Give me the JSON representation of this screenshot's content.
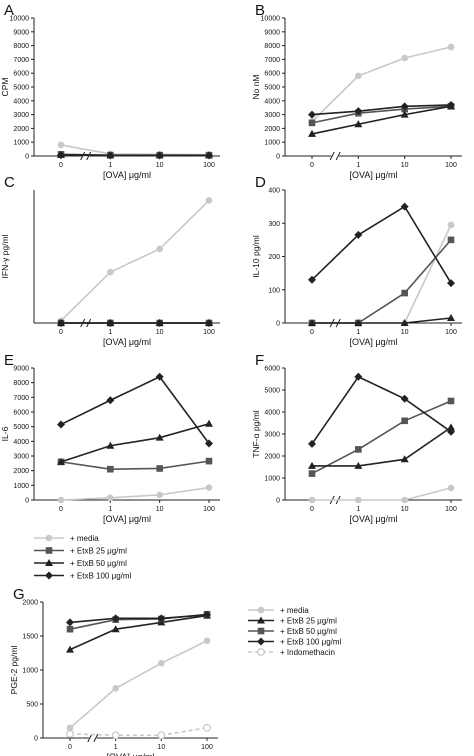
{
  "legend_main": [
    {
      "label": "+ media",
      "color": "#c8c8c8",
      "marker": "circle",
      "dash": false
    },
    {
      "label": "+ EtxB 25  μg/ml",
      "color": "#555555",
      "marker": "square",
      "dash": false
    },
    {
      "label": "+ EtxB 50  μg/ml",
      "color": "#222222",
      "marker": "triangle",
      "dash": false
    },
    {
      "label": "+ EtxB 100  μg/ml",
      "color": "#222222",
      "marker": "diamond",
      "dash": false
    }
  ],
  "legend_g": [
    {
      "label": "+ media",
      "color": "#c8c8c8",
      "marker": "circle",
      "dash": false
    },
    {
      "label": "+ EtxB 25  μg/ml",
      "color": "#222222",
      "marker": "triangle",
      "dash": false
    },
    {
      "label": "+ EtxB 50  μg/ml",
      "color": "#555555",
      "marker": "square",
      "dash": false
    },
    {
      "label": "+ EtxB 100  μg/ml",
      "color": "#222222",
      "marker": "diamond",
      "dash": false
    },
    {
      "label": "+ Indomethacin",
      "color": "#c8c8c8",
      "marker": "open-circle",
      "dash": true
    }
  ],
  "chart_data": [
    {
      "id": "A",
      "type": "line",
      "letter": "A",
      "ylabel": "CPM",
      "xlabel": "[OVA]  μg/ml",
      "categories": [
        "0",
        "1",
        "10",
        "100"
      ],
      "ylim": [
        0,
        10000
      ],
      "yticks": [
        0,
        1000,
        2000,
        3000,
        4000,
        5000,
        6000,
        7000,
        8000,
        9000,
        10000
      ],
      "axis_break": true,
      "series": [
        {
          "values": [
            800,
            150,
            120,
            100
          ],
          "color": "#c8c8c8",
          "marker": "circle",
          "dash": false
        },
        {
          "values": [
            120,
            60,
            60,
            60
          ],
          "color": "#555555",
          "marker": "square",
          "dash": false
        },
        {
          "values": [
            80,
            50,
            50,
            50
          ],
          "color": "#222222",
          "marker": "triangle",
          "dash": false
        },
        {
          "values": [
            60,
            40,
            40,
            40
          ],
          "color": "#222222",
          "marker": "diamond",
          "dash": false
        }
      ]
    },
    {
      "id": "B",
      "type": "line",
      "letter": "B",
      "ylabel": "No nM",
      "xlabel": "[OVA]  μg/ml",
      "categories": [
        "0",
        "1",
        "10",
        "100"
      ],
      "ylim": [
        0,
        10000
      ],
      "yticks": [
        0,
        1000,
        2000,
        3000,
        4000,
        5000,
        6000,
        7000,
        8000,
        9000,
        10000
      ],
      "axis_break": true,
      "series": [
        {
          "values": [
            2500,
            5800,
            7100,
            7900
          ],
          "color": "#c8c8c8",
          "marker": "circle",
          "dash": false
        },
        {
          "values": [
            2400,
            3100,
            3400,
            3600
          ],
          "color": "#555555",
          "marker": "square",
          "dash": false
        },
        {
          "values": [
            1600,
            2300,
            3000,
            3600
          ],
          "color": "#222222",
          "marker": "triangle",
          "dash": false
        },
        {
          "values": [
            3000,
            3250,
            3600,
            3700
          ],
          "color": "#222222",
          "marker": "diamond",
          "dash": false
        }
      ]
    },
    {
      "id": "C",
      "type": "line",
      "letter": "C",
      "ylabel": "IFN-γ pg/ml",
      "xlabel": "[OVA]  μg/ml",
      "categories": [
        "0",
        "1",
        "10",
        "100"
      ],
      "ylim": [
        0,
        1150
      ],
      "yticks": [],
      "axis_break": true,
      "series": [
        {
          "values": [
            20,
            440,
            640,
            1060
          ],
          "color": "#c8c8c8",
          "marker": "circle",
          "dash": false
        },
        {
          "values": [
            0,
            0,
            0,
            0
          ],
          "color": "#555555",
          "marker": "square",
          "dash": false
        },
        {
          "values": [
            0,
            0,
            0,
            0
          ],
          "color": "#222222",
          "marker": "triangle",
          "dash": false
        },
        {
          "values": [
            0,
            0,
            0,
            0
          ],
          "color": "#222222",
          "marker": "diamond",
          "dash": false
        }
      ]
    },
    {
      "id": "D",
      "type": "line",
      "letter": "D",
      "ylabel": "IL-10 pg/ml",
      "xlabel": "[OVA]  μg/ml",
      "categories": [
        "0",
        "1",
        "10",
        "100"
      ],
      "ylim": [
        0,
        400
      ],
      "yticks": [
        0,
        100,
        200,
        300,
        400
      ],
      "axis_break": true,
      "series": [
        {
          "values": [
            0,
            0,
            0,
            295
          ],
          "color": "#c8c8c8",
          "marker": "circle",
          "dash": false
        },
        {
          "values": [
            0,
            0,
            90,
            250
          ],
          "color": "#555555",
          "marker": "square",
          "dash": false
        },
        {
          "values": [
            0,
            0,
            0,
            15
          ],
          "color": "#222222",
          "marker": "triangle",
          "dash": false
        },
        {
          "values": [
            130,
            265,
            350,
            120
          ],
          "color": "#222222",
          "marker": "diamond",
          "dash": false
        }
      ]
    },
    {
      "id": "E",
      "type": "line",
      "letter": "E",
      "ylabel": "IL-6",
      "xlabel": "[OVA]  μg/ml",
      "categories": [
        "0",
        "1",
        "10",
        "100"
      ],
      "ylim": [
        0,
        9000
      ],
      "yticks": [
        0,
        1000,
        2000,
        3000,
        4000,
        5000,
        6000,
        7000,
        8000,
        9000
      ],
      "axis_break": false,
      "series": [
        {
          "values": [
            0,
            150,
            350,
            850
          ],
          "color": "#c8c8c8",
          "marker": "circle",
          "dash": false
        },
        {
          "values": [
            2600,
            2100,
            2150,
            2650
          ],
          "color": "#555555",
          "marker": "square",
          "dash": false
        },
        {
          "values": [
            2600,
            3700,
            4250,
            5200
          ],
          "color": "#222222",
          "marker": "triangle",
          "dash": false
        },
        {
          "values": [
            5150,
            6800,
            8400,
            3850
          ],
          "color": "#222222",
          "marker": "diamond",
          "dash": false
        }
      ]
    },
    {
      "id": "F",
      "type": "line",
      "letter": "F",
      "ylabel": "TNF-α pg/ml",
      "xlabel": "[OVA]  μg/ml",
      "categories": [
        "0",
        "1",
        "10",
        "100"
      ],
      "ylim": [
        0,
        6000
      ],
      "yticks": [
        0,
        1000,
        2000,
        3000,
        4000,
        5000,
        6000
      ],
      "axis_break": true,
      "series": [
        {
          "values": [
            0,
            0,
            0,
            550
          ],
          "color": "#c8c8c8",
          "marker": "circle",
          "dash": false
        },
        {
          "values": [
            1200,
            2300,
            3600,
            4500
          ],
          "color": "#555555",
          "marker": "square",
          "dash": false
        },
        {
          "values": [
            1550,
            1550,
            1850,
            3300
          ],
          "color": "#222222",
          "marker": "triangle",
          "dash": false
        },
        {
          "values": [
            2550,
            5600,
            4600,
            3100
          ],
          "color": "#222222",
          "marker": "diamond",
          "dash": false
        }
      ]
    },
    {
      "id": "G",
      "type": "line",
      "letter": "G",
      "ylabel": "PGE-2 pg/ml",
      "xlabel": "[OVA]  μg/ml",
      "categories": [
        "0",
        "1",
        "10",
        "100"
      ],
      "ylim": [
        0,
        2000
      ],
      "yticks": [
        0,
        500,
        1000,
        1500,
        2000
      ],
      "axis_break": true,
      "series": [
        {
          "values": [
            150,
            730,
            1100,
            1430
          ],
          "color": "#c8c8c8",
          "marker": "circle",
          "dash": false
        },
        {
          "values": [
            1300,
            1600,
            1700,
            1800
          ],
          "color": "#222222",
          "marker": "triangle",
          "dash": false
        },
        {
          "values": [
            1600,
            1740,
            1750,
            1820
          ],
          "color": "#555555",
          "marker": "square",
          "dash": false
        },
        {
          "values": [
            1700,
            1760,
            1760,
            1810
          ],
          "color": "#222222",
          "marker": "diamond",
          "dash": false
        },
        {
          "values": [
            60,
            40,
            40,
            150
          ],
          "color": "#c8c8c8",
          "marker": "open-circle",
          "dash": true
        }
      ]
    }
  ]
}
